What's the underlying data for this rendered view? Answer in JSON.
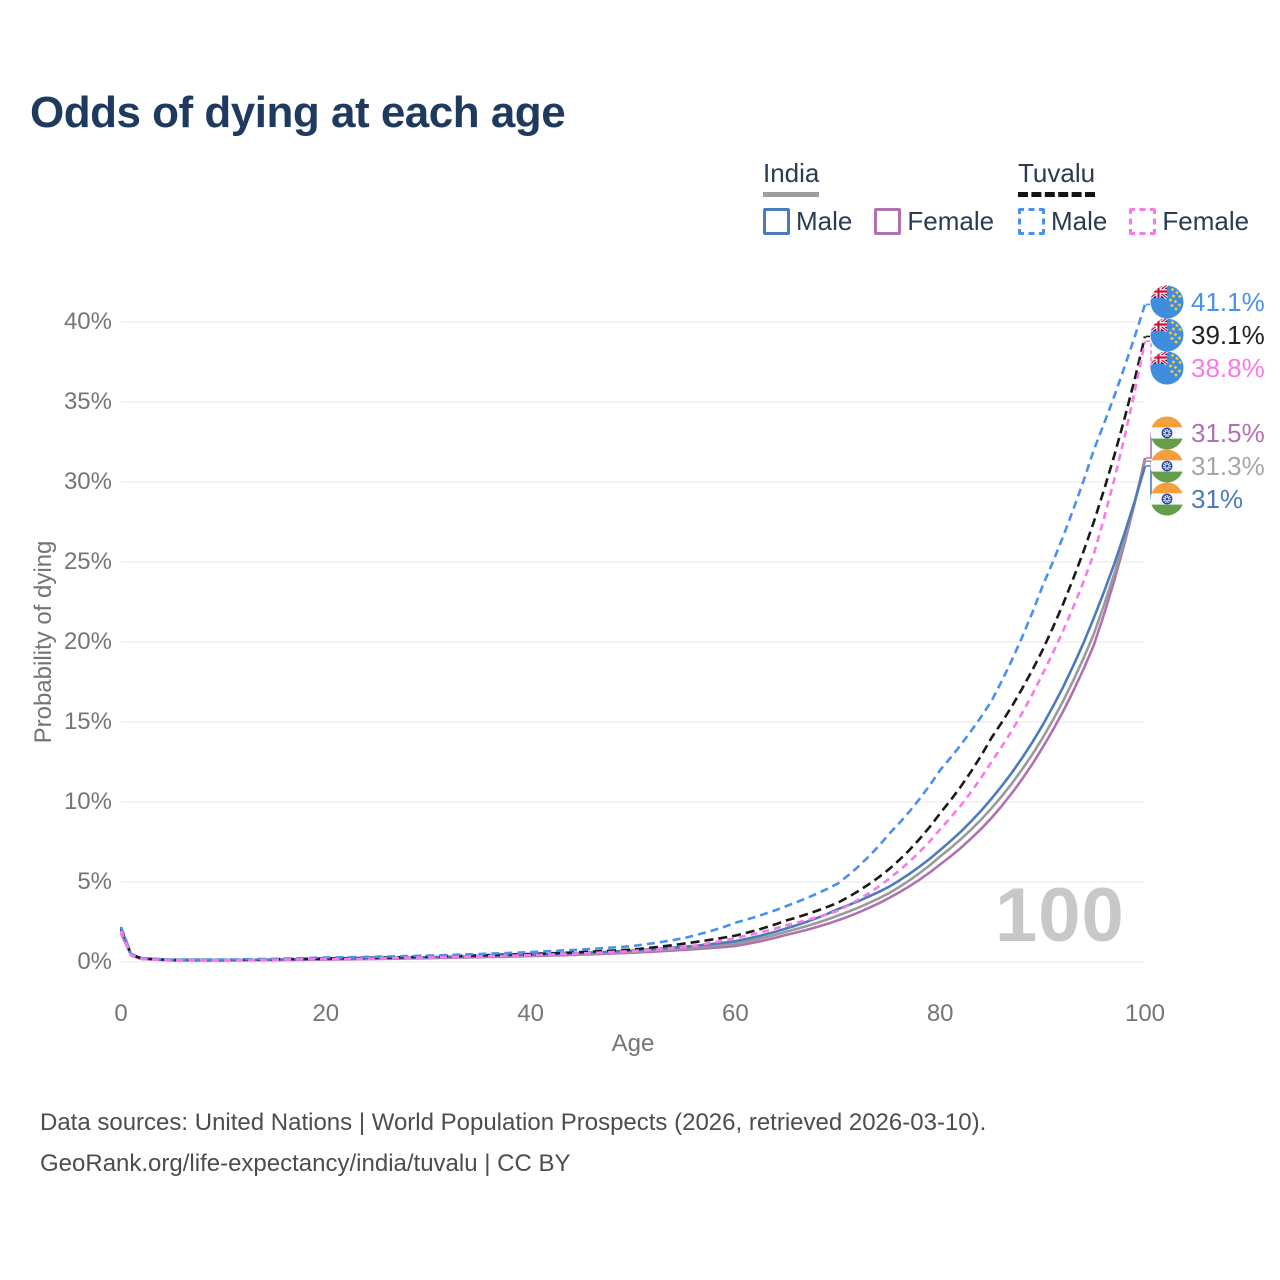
{
  "title": "Odds of dying at each age",
  "legend": {
    "groups": [
      {
        "country": "India",
        "line_style": "solid",
        "underline_color": "#9e9e9e",
        "items": [
          {
            "label": "Male",
            "color": "#4a7cbb"
          },
          {
            "label": "Female",
            "color": "#b171b1"
          }
        ]
      },
      {
        "country": "Tuvalu",
        "line_style": "dashed",
        "underline_color": "#141414",
        "items": [
          {
            "label": "Male",
            "color": "#4a90ee"
          },
          {
            "label": "Female",
            "color": "#f87ae8"
          }
        ]
      }
    ]
  },
  "chart_data": {
    "type": "line",
    "title": "Odds of dying at each age",
    "xlabel": "Age",
    "ylabel": "Probability of dying",
    "x_ticks": [
      0,
      20,
      40,
      60,
      80,
      100
    ],
    "y_ticks_pct": [
      0,
      5,
      10,
      15,
      20,
      25,
      30,
      35,
      40
    ],
    "xlim": [
      0,
      100
    ],
    "ylim_pct": [
      0,
      43
    ],
    "grid": "horizontal-only",
    "legend_position": "top-right",
    "watermark": "100",
    "series": [
      {
        "id": "india-female",
        "country": "India",
        "sex": "Female",
        "color": "#b171b1",
        "dash": null,
        "label_color": "#b171b1",
        "end_label": "31.5%",
        "end_value": 31.5,
        "points": [
          [
            0,
            1.8
          ],
          [
            1,
            0.4
          ],
          [
            2,
            0.19
          ],
          [
            5,
            0.1
          ],
          [
            10,
            0.1
          ],
          [
            15,
            0.12
          ],
          [
            20,
            0.15
          ],
          [
            25,
            0.19
          ],
          [
            30,
            0.24
          ],
          [
            35,
            0.3
          ],
          [
            40,
            0.37
          ],
          [
            45,
            0.46
          ],
          [
            50,
            0.58
          ],
          [
            55,
            0.76
          ],
          [
            60,
            1.0
          ],
          [
            65,
            1.7
          ],
          [
            70,
            2.6
          ],
          [
            75,
            4.0
          ],
          [
            80,
            6.1
          ],
          [
            85,
            9.0
          ],
          [
            90,
            13.4
          ],
          [
            95,
            19.8
          ],
          [
            100,
            31.5
          ]
        ]
      },
      {
        "id": "india-total",
        "country": "India",
        "sex": "Both sexes",
        "color": "#9a9a9a",
        "dash": null,
        "label_color": "#a6a6a6",
        "end_label": "31.3%",
        "end_value": 31.3,
        "points": [
          [
            0,
            1.95
          ],
          [
            1,
            0.43
          ],
          [
            2,
            0.21
          ],
          [
            5,
            0.11
          ],
          [
            10,
            0.11
          ],
          [
            15,
            0.14
          ],
          [
            20,
            0.17
          ],
          [
            25,
            0.21
          ],
          [
            30,
            0.27
          ],
          [
            35,
            0.33
          ],
          [
            40,
            0.41
          ],
          [
            45,
            0.51
          ],
          [
            50,
            0.64
          ],
          [
            55,
            0.85
          ],
          [
            60,
            1.15
          ],
          [
            65,
            1.9
          ],
          [
            70,
            2.9
          ],
          [
            75,
            4.3
          ],
          [
            80,
            6.6
          ],
          [
            85,
            9.6
          ],
          [
            90,
            14.0
          ],
          [
            95,
            20.5
          ],
          [
            100,
            31.3
          ]
        ]
      },
      {
        "id": "india-male",
        "country": "India",
        "sex": "Male",
        "color": "#4a7cbb",
        "dash": null,
        "label_color": "#4a7cbb",
        "end_label": "31%",
        "end_value": 31.0,
        "points": [
          [
            0,
            2.1
          ],
          [
            1,
            0.45
          ],
          [
            2,
            0.22
          ],
          [
            5,
            0.12
          ],
          [
            10,
            0.12
          ],
          [
            15,
            0.15
          ],
          [
            20,
            0.19
          ],
          [
            25,
            0.24
          ],
          [
            30,
            0.3
          ],
          [
            35,
            0.37
          ],
          [
            40,
            0.46
          ],
          [
            45,
            0.57
          ],
          [
            50,
            0.72
          ],
          [
            55,
            0.95
          ],
          [
            60,
            1.3
          ],
          [
            65,
            2.1
          ],
          [
            70,
            3.3
          ],
          [
            75,
            4.7
          ],
          [
            80,
            7.0
          ],
          [
            85,
            10.2
          ],
          [
            90,
            14.8
          ],
          [
            95,
            21.5
          ],
          [
            100,
            31.0
          ]
        ]
      },
      {
        "id": "tuvalu-total",
        "country": "Tuvalu",
        "sex": "Both sexes",
        "color": "#1a1a1a",
        "dash": "9 5",
        "label_color": "#222222",
        "end_label": "39.1%",
        "end_value": 39.1,
        "points": [
          [
            0,
            2.05
          ],
          [
            1,
            0.47
          ],
          [
            2,
            0.23
          ],
          [
            5,
            0.13
          ],
          [
            10,
            0.13
          ],
          [
            15,
            0.17
          ],
          [
            20,
            0.22
          ],
          [
            25,
            0.27
          ],
          [
            30,
            0.33
          ],
          [
            35,
            0.42
          ],
          [
            40,
            0.5
          ],
          [
            45,
            0.62
          ],
          [
            50,
            0.78
          ],
          [
            55,
            1.15
          ],
          [
            60,
            1.65
          ],
          [
            65,
            2.6
          ],
          [
            70,
            3.7
          ],
          [
            75,
            5.8
          ],
          [
            80,
            9.3
          ],
          [
            85,
            14.0
          ],
          [
            90,
            19.5
          ],
          [
            95,
            27.5
          ],
          [
            100,
            39.1
          ]
        ]
      },
      {
        "id": "tuvalu-male",
        "country": "Tuvalu",
        "sex": "Male",
        "color": "#4a90ee",
        "dash": "8 5",
        "label_color": "#4a90ee",
        "end_label": "41.1%",
        "end_value": 41.1,
        "points": [
          [
            0,
            2.2
          ],
          [
            1,
            0.5
          ],
          [
            2,
            0.25
          ],
          [
            5,
            0.15
          ],
          [
            10,
            0.15
          ],
          [
            15,
            0.2
          ],
          [
            20,
            0.28
          ],
          [
            25,
            0.33
          ],
          [
            30,
            0.4
          ],
          [
            35,
            0.5
          ],
          [
            40,
            0.62
          ],
          [
            45,
            0.78
          ],
          [
            50,
            1.0
          ],
          [
            55,
            1.5
          ],
          [
            60,
            2.45
          ],
          [
            65,
            3.5
          ],
          [
            70,
            4.9
          ],
          [
            75,
            8.0
          ],
          [
            80,
            12.0
          ],
          [
            85,
            16.3
          ],
          [
            90,
            23.5
          ],
          [
            95,
            32.0
          ],
          [
            100,
            41.1
          ]
        ]
      },
      {
        "id": "tuvalu-female",
        "country": "Tuvalu",
        "sex": "Female",
        "color": "#f87ae8",
        "dash": "7 5",
        "label_color": "#f87ae8",
        "end_label": "38.8%",
        "end_value": 38.8,
        "points": [
          [
            0,
            1.95
          ],
          [
            1,
            0.42
          ],
          [
            2,
            0.2
          ],
          [
            5,
            0.11
          ],
          [
            10,
            0.11
          ],
          [
            15,
            0.14
          ],
          [
            20,
            0.18
          ],
          [
            25,
            0.22
          ],
          [
            30,
            0.28
          ],
          [
            35,
            0.35
          ],
          [
            40,
            0.43
          ],
          [
            45,
            0.54
          ],
          [
            50,
            0.68
          ],
          [
            55,
            0.92
          ],
          [
            60,
            1.5
          ],
          [
            65,
            2.3
          ],
          [
            70,
            3.2
          ],
          [
            75,
            5.2
          ],
          [
            80,
            8.3
          ],
          [
            85,
            12.5
          ],
          [
            90,
            18.0
          ],
          [
            95,
            25.5
          ],
          [
            100,
            38.8
          ]
        ]
      }
    ]
  },
  "footer": {
    "line1": "Data sources: United Nations | World Population Prospects (2026, retrieved 2026-03-10).",
    "line2": "GeoRank.org/life-expectancy/india/tuvalu | CC BY"
  },
  "colors": {
    "grid": "#ececec",
    "axis_text": "#757575",
    "title": "#1e3a5f",
    "footer_text": "#4d4d4d",
    "watermark": "#c8c8c8",
    "legend_text": "#2a3b52"
  }
}
